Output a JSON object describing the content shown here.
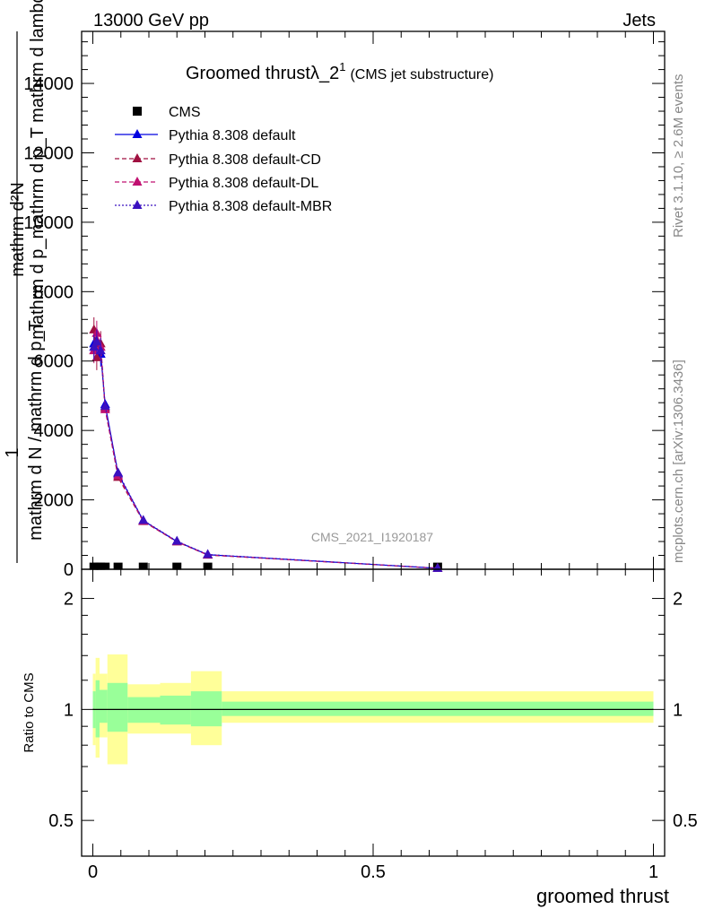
{
  "header": {
    "left": "13000 GeV pp",
    "right": "Jets"
  },
  "side_labels": {
    "rivet": "Rivet 3.1.10, ≥ 2.6M events",
    "mcplots": "mcplots.cern.ch [arXiv:1306.3436]"
  },
  "watermark": "CMS_2021_I1920187",
  "colors": {
    "cms": "#000000",
    "default": "#0000e0",
    "cd": "#a01040",
    "dl": "#c01070",
    "mbr": "#3a10c0",
    "band_inner": "#99ff99",
    "band_outer": "#ffff99"
  },
  "chart_data": [
    {
      "type": "line",
      "title": "Groomed thrustλ_2",
      "title_sup": "1",
      "title_note": "(CMS jet substructure)",
      "ylabel_numer": "mathrm d²N",
      "ylabel_denom": "mathrm d p_mathrm d p_T mathrm d lambda",
      "ylabel_frac_numer": "1",
      "ylabel_frac_denom": "mathrm d N / mathrm d p_T",
      "xlabel": "groomed thrust",
      "xlim": [
        -0.02,
        1.02
      ],
      "ylim": [
        0,
        15500
      ],
      "yticks": [
        0,
        2000,
        4000,
        6000,
        8000,
        10000,
        12000,
        14000
      ],
      "yticklabels": [
        "0",
        "2000",
        "4000",
        "6000",
        "8000",
        "10000",
        "12000",
        "14000"
      ],
      "legend_position": "top-left",
      "legend": [
        "CMS",
        "Pythia 8.308 default",
        "Pythia 8.308 default-CD",
        "Pythia 8.308 default-DL",
        "Pythia 8.308 default-MBR"
      ],
      "series": [
        {
          "name": "CMS",
          "x": [
            0.002,
            0.007,
            0.014,
            0.022,
            0.045,
            0.09,
            0.15,
            0.205,
            0.615
          ],
          "y": [
            10,
            10,
            10,
            10,
            10,
            10,
            10,
            10,
            10
          ]
        },
        {
          "name": "Pythia 8.308 default",
          "x": [
            0.002,
            0.007,
            0.014,
            0.022,
            0.045,
            0.09,
            0.15,
            0.205,
            0.615
          ],
          "y": [
            6500,
            6600,
            6200,
            4750,
            2750,
            1400,
            800,
            420,
            30
          ]
        },
        {
          "name": "Pythia 8.308 default-CD",
          "x": [
            0.002,
            0.007,
            0.014,
            0.022,
            0.045,
            0.09,
            0.15,
            0.205,
            0.615
          ],
          "y": [
            6900,
            6100,
            6500,
            4650,
            2650,
            1380,
            790,
            410,
            30
          ]
        },
        {
          "name": "Pythia 8.308 default-DL",
          "x": [
            0.002,
            0.007,
            0.014,
            0.022,
            0.045,
            0.09,
            0.15,
            0.205,
            0.615
          ],
          "y": [
            6300,
            6800,
            6400,
            4600,
            2700,
            1390,
            800,
            415,
            30
          ]
        },
        {
          "name": "Pythia 8.308 default-MBR",
          "x": [
            0.002,
            0.007,
            0.014,
            0.022,
            0.045,
            0.09,
            0.15,
            0.205,
            0.615
          ],
          "y": [
            6400,
            6550,
            6300,
            4700,
            2780,
            1410,
            810,
            425,
            30
          ]
        }
      ]
    },
    {
      "type": "area",
      "ylabel": "Ratio to CMS",
      "xlabel": "groomed thrust",
      "xlim": [
        -0.02,
        1.02
      ],
      "ylim": [
        0.4,
        2.4
      ],
      "yscale": "log",
      "yticks": [
        0.5,
        1,
        2
      ],
      "yticklabels": [
        "0.5",
        "1",
        "2"
      ],
      "xticks": [
        0,
        0.5,
        1
      ],
      "xticklabels": [
        "0",
        "0.5",
        "1"
      ],
      "reference_line": 1,
      "bins": [
        {
          "lo": 0.0,
          "hi": 0.005,
          "inner": [
            0.89,
            1.12
          ],
          "outer": [
            0.8,
            1.25
          ]
        },
        {
          "lo": 0.005,
          "hi": 0.012,
          "inner": [
            0.84,
            1.2
          ],
          "outer": [
            0.74,
            1.38
          ]
        },
        {
          "lo": 0.012,
          "hi": 0.026,
          "inner": [
            0.92,
            1.13
          ],
          "outer": [
            0.84,
            1.25
          ]
        },
        {
          "lo": 0.026,
          "hi": 0.062,
          "inner": [
            0.87,
            1.18
          ],
          "outer": [
            0.71,
            1.41
          ]
        },
        {
          "lo": 0.062,
          "hi": 0.12,
          "inner": [
            0.92,
            1.08
          ],
          "outer": [
            0.86,
            1.17
          ]
        },
        {
          "lo": 0.12,
          "hi": 0.175,
          "inner": [
            0.91,
            1.09
          ],
          "outer": [
            0.86,
            1.18
          ]
        },
        {
          "lo": 0.175,
          "hi": 0.23,
          "inner": [
            0.9,
            1.12
          ],
          "outer": [
            0.8,
            1.27
          ]
        },
        {
          "lo": 0.23,
          "hi": 1.0,
          "inner": [
            0.96,
            1.05
          ],
          "outer": [
            0.92,
            1.12
          ]
        }
      ]
    }
  ]
}
